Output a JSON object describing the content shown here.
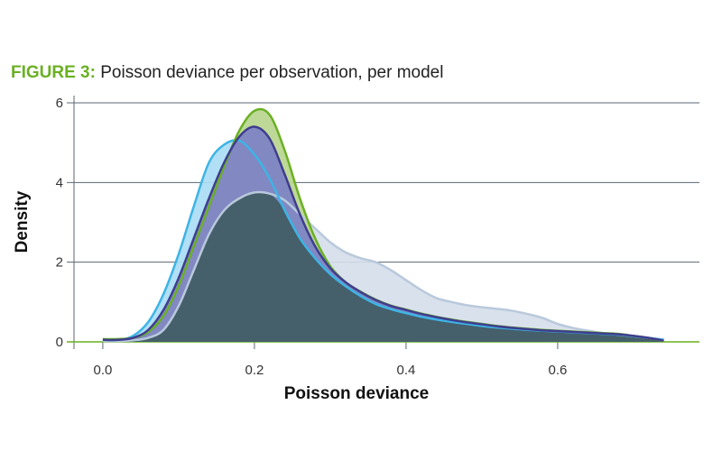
{
  "title": {
    "prefix": "FIGURE 3:",
    "text": " Poisson deviance per observation, per model"
  },
  "chart_data": {
    "type": "area",
    "title": "Poisson deviance per observation, per model",
    "xlabel": "Poisson deviance",
    "ylabel": "Density",
    "xlim": [
      -0.038,
      0.787
    ],
    "ylim": [
      0,
      6
    ],
    "xticks": [
      0.0,
      0.2,
      0.4,
      0.6
    ],
    "xtick_labels": [
      "0.0",
      "0.2",
      "0.4",
      "0.6"
    ],
    "yticks": [
      0,
      2,
      4,
      6
    ],
    "ytick_labels": [
      "0",
      "2",
      "4",
      "6"
    ],
    "grid": "horizontal",
    "overlap_color": "#455f6b",
    "x": [
      0,
      0.02,
      0.04,
      0.06,
      0.08,
      0.1,
      0.12,
      0.14,
      0.16,
      0.18,
      0.2,
      0.22,
      0.24,
      0.26,
      0.28,
      0.3,
      0.32,
      0.34,
      0.36,
      0.38,
      0.4,
      0.42,
      0.44,
      0.46,
      0.48,
      0.5,
      0.52,
      0.54,
      0.56,
      0.58,
      0.6,
      0.62,
      0.64,
      0.66,
      0.68,
      0.7,
      0.72,
      0.74
    ],
    "series": [
      {
        "name": "pale",
        "stroke": "#b9c9dc",
        "fill": "#d5deea",
        "values": [
          0.02,
          0.02,
          0.04,
          0.1,
          0.3,
          0.9,
          1.8,
          2.7,
          3.3,
          3.6,
          3.75,
          3.72,
          3.55,
          3.2,
          2.85,
          2.5,
          2.25,
          2.1,
          2.0,
          1.8,
          1.55,
          1.3,
          1.1,
          1.0,
          0.92,
          0.87,
          0.83,
          0.78,
          0.7,
          0.6,
          0.45,
          0.35,
          0.28,
          0.22,
          0.18,
          0.14,
          0.1,
          0.06
        ]
      },
      {
        "name": "light-blue",
        "stroke": "#3db4e5",
        "fill": "#a9dcf5",
        "values": [
          0.05,
          0.05,
          0.15,
          0.5,
          1.2,
          2.2,
          3.4,
          4.5,
          4.95,
          5.05,
          4.7,
          4.1,
          3.3,
          2.6,
          2.1,
          1.7,
          1.4,
          1.15,
          0.95,
          0.82,
          0.72,
          0.63,
          0.56,
          0.5,
          0.45,
          0.4,
          0.36,
          0.33,
          0.3,
          0.28,
          0.26,
          0.24,
          0.22,
          0.2,
          0.18,
          0.14,
          0.1,
          0.05
        ]
      },
      {
        "name": "green",
        "stroke": "#6ab023",
        "fill": "#b7d58c",
        "values": [
          0.07,
          0.07,
          0.1,
          0.25,
          0.65,
          1.4,
          2.4,
          3.4,
          4.4,
          5.3,
          5.8,
          5.7,
          4.8,
          3.6,
          2.6,
          1.9,
          1.5,
          1.26,
          1.06,
          0.91,
          0.81,
          0.71,
          0.63,
          0.56,
          0.5,
          0.45,
          0.4,
          0.36,
          0.33,
          0.3,
          0.28,
          0.26,
          0.24,
          0.22,
          0.2,
          0.15,
          0.1,
          0.02
        ]
      },
      {
        "name": "purple",
        "stroke": "#3f3d8f",
        "fill": "#7b80c6",
        "values": [
          0.05,
          0.05,
          0.1,
          0.3,
          0.8,
          1.6,
          2.6,
          3.6,
          4.5,
          5.15,
          5.4,
          5.1,
          4.2,
          3.2,
          2.4,
          1.85,
          1.5,
          1.25,
          1.05,
          0.9,
          0.8,
          0.7,
          0.62,
          0.55,
          0.49,
          0.44,
          0.39,
          0.35,
          0.32,
          0.29,
          0.27,
          0.25,
          0.23,
          0.21,
          0.19,
          0.15,
          0.1,
          0.03
        ]
      }
    ]
  }
}
